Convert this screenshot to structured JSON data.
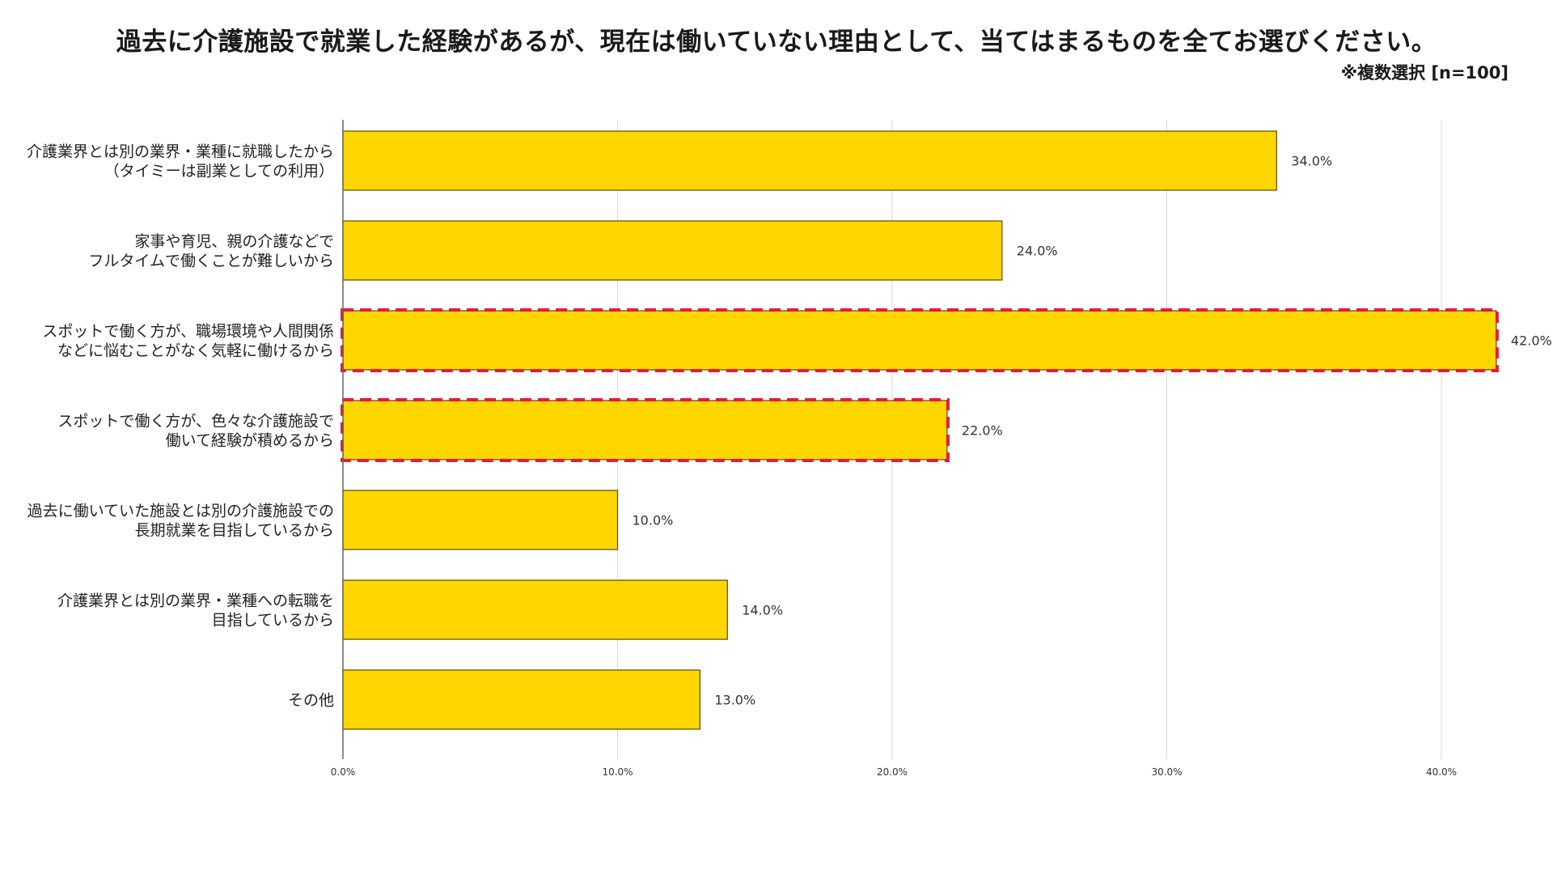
{
  "title": "過去に介護施設で就業した経験があるが、現在は働いていない理由として、当てはまるものを全てお選びください。",
  "note": "※複数選択 [n=100]",
  "colors": {
    "bar_fill": "#FFD600",
    "bar_stroke": "#5a4a00",
    "highlight": "#E8193C",
    "grid": "#d9d9d9",
    "axis": "#666666"
  },
  "chart_data": {
    "type": "bar",
    "orientation": "horizontal",
    "categories": [
      [
        "介護業界とは別の業界・業種に就職したから",
        "（タイミーは副業としての利用）"
      ],
      [
        "家事や育児、親の介護などで",
        "フルタイムで働くことが難しいから"
      ],
      [
        "スポットで働く方が、職場環境や人間関係",
        "などに悩むことがなく気軽に働けるから"
      ],
      [
        "スポットで働く方が、色々な介護施設で",
        "働いて経験が積めるから"
      ],
      [
        "過去に働いていた施設とは別の介護施設での",
        "長期就業を目指しているから"
      ],
      [
        "介護業界とは別の業界・業種への転職を",
        "目指しているから"
      ],
      [
        "その他"
      ]
    ],
    "values": [
      34.0,
      24.0,
      42.0,
      22.0,
      10.0,
      14.0,
      13.0
    ],
    "value_labels": [
      "34.0%",
      "24.0%",
      "42.0%",
      "22.0%",
      "10.0%",
      "14.0%",
      "13.0%"
    ],
    "highlighted": [
      false,
      false,
      true,
      true,
      false,
      false,
      false
    ],
    "xlim": [
      0,
      42
    ],
    "xticks": [
      0,
      10,
      20,
      30,
      40
    ],
    "xtick_labels": [
      "0.0%",
      "10.0%",
      "20.0%",
      "30.0%",
      "40.0%"
    ],
    "grid": true,
    "xlabel": "",
    "ylabel": ""
  }
}
